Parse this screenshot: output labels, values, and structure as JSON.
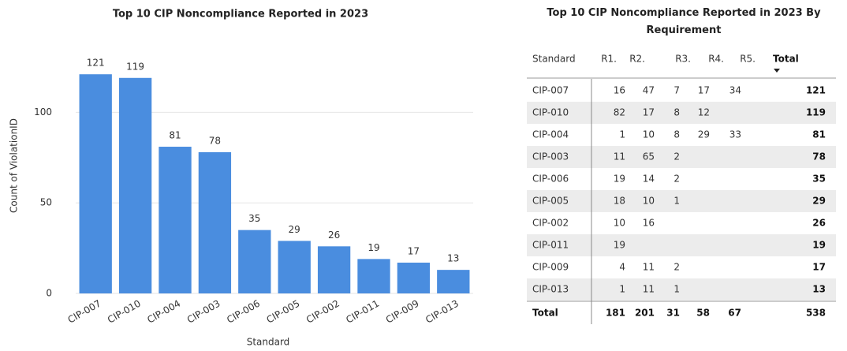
{
  "chart_data": {
    "type": "bar",
    "title": "Top 10 CIP Noncompliance Reported in 2023",
    "x_label": "Standard",
    "y_label": "Count of ViolationID",
    "categories": [
      "CIP-007",
      "CIP-010",
      "CIP-004",
      "CIP-003",
      "CIP-006",
      "CIP-005",
      "CIP-002",
      "CIP-011",
      "CIP-009",
      "CIP-013"
    ],
    "values": [
      121,
      119,
      81,
      78,
      35,
      29,
      26,
      19,
      17,
      13
    ],
    "color": "#4a8ddf",
    "ylim": [
      0,
      125
    ],
    "yticks": [
      0,
      50,
      100
    ],
    "grid": true
  },
  "table": {
    "title": "Top 10 CIP Noncompliance Reported in 2023 By Requirement",
    "header": [
      "Standard",
      "R1.",
      "R2.",
      "R3.",
      "R4.",
      "R5.",
      "Total"
    ],
    "rows": [
      [
        "CIP-007",
        16,
        47,
        7,
        17,
        34,
        121
      ],
      [
        "CIP-010",
        82,
        17,
        8,
        12,
        null,
        119
      ],
      [
        "CIP-004",
        1,
        10,
        8,
        29,
        33,
        81
      ],
      [
        "CIP-003",
        11,
        65,
        2,
        null,
        null,
        78
      ],
      [
        "CIP-006",
        19,
        14,
        2,
        null,
        null,
        35
      ],
      [
        "CIP-005",
        18,
        10,
        1,
        null,
        null,
        29
      ],
      [
        "CIP-002",
        10,
        16,
        null,
        null,
        null,
        26
      ],
      [
        "CIP-011",
        19,
        null,
        null,
        null,
        null,
        19
      ],
      [
        "CIP-009",
        4,
        11,
        2,
        null,
        null,
        17
      ],
      [
        "CIP-013",
        1,
        11,
        1,
        null,
        null,
        13
      ]
    ],
    "total_row": [
      "Total",
      181,
      201,
      31,
      58,
      67,
      538
    ]
  }
}
